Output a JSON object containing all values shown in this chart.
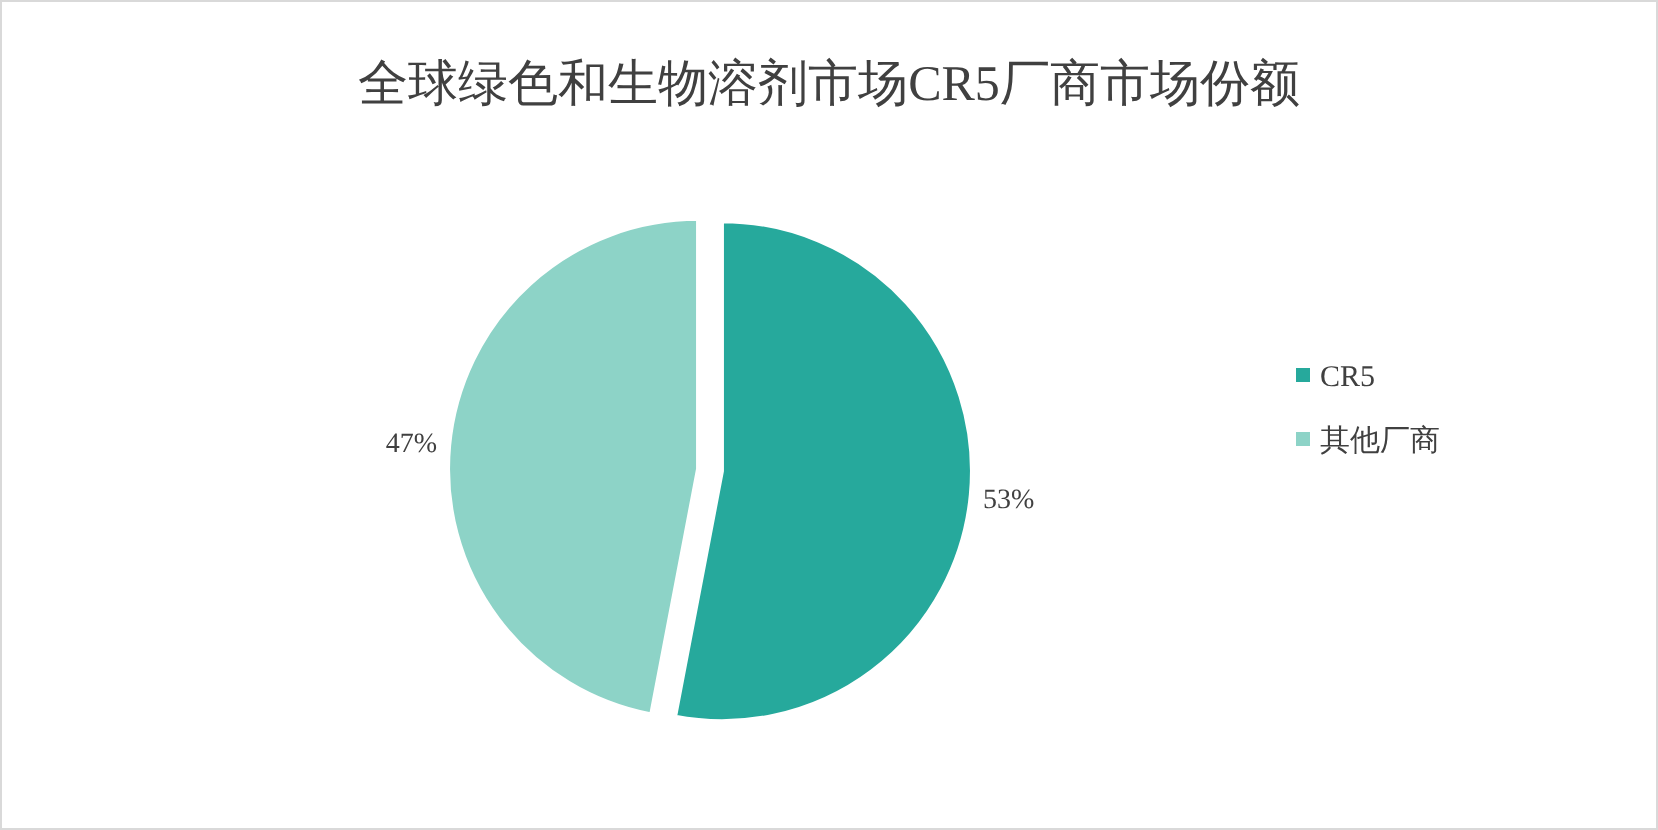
{
  "chart_data": {
    "type": "pie",
    "title": "全球绿色和生物溶剂市场CR5厂商市场份额",
    "categories": [
      "CR5",
      "其他厂商"
    ],
    "values": [
      53,
      47
    ],
    "colors": [
      "#26a99c",
      "#8dd3c7"
    ],
    "value_labels": [
      "53%",
      "47%"
    ],
    "legend": "right"
  }
}
